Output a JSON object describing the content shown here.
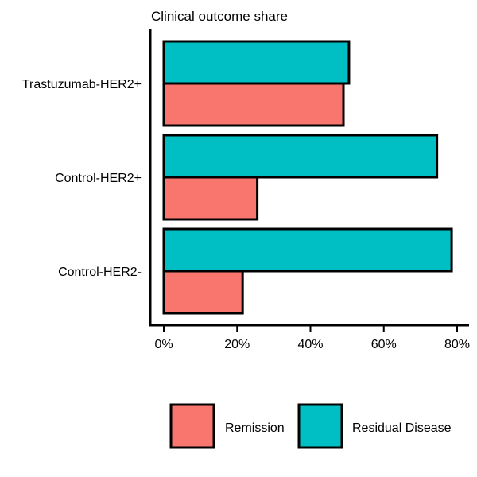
{
  "chart_data": {
    "type": "bar",
    "orientation": "horizontal",
    "title": "Clinical outcome share",
    "categories": [
      "Trastuzumab-HER2+",
      "Control-HER2+",
      "Control-HER2-"
    ],
    "series": [
      {
        "name": "Remission",
        "color": "#F8766D",
        "values": [
          49,
          25.5,
          21.5
        ]
      },
      {
        "name": "Residual Disease",
        "color": "#00BFC4",
        "values": [
          50.5,
          74.5,
          78.5
        ]
      }
    ],
    "xlim": [
      0,
      80
    ],
    "xticks": [
      0,
      20,
      40,
      60,
      80
    ],
    "tick_labels": [
      "0%",
      "20%",
      "40%",
      "60%",
      "80%"
    ],
    "xlabel": "",
    "ylabel": "",
    "grid": false,
    "legend_position": "bottom"
  }
}
